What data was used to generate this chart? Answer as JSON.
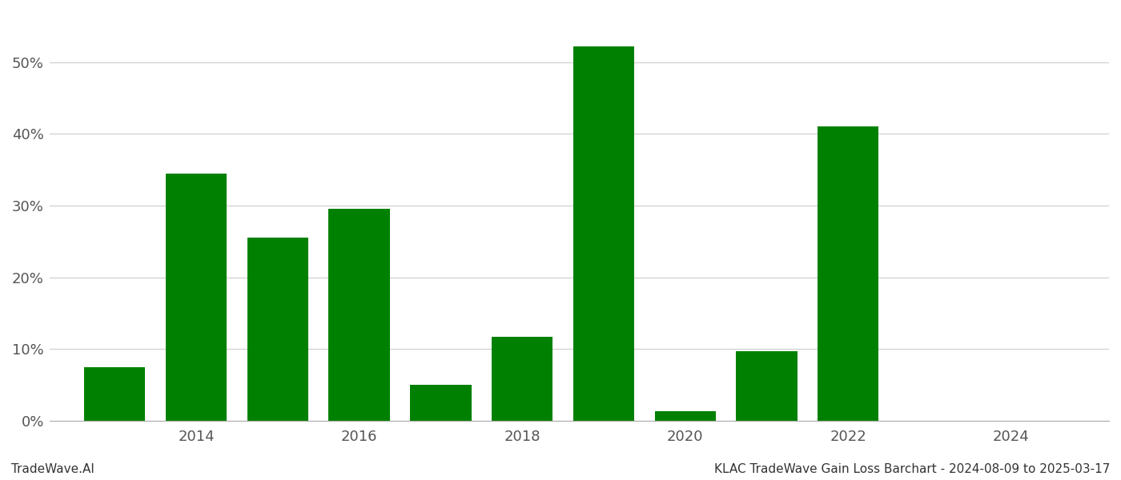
{
  "years": [
    2013,
    2014,
    2015,
    2016,
    2017,
    2018,
    2019,
    2020,
    2021,
    2022,
    2023
  ],
  "values": [
    7.5,
    34.5,
    25.5,
    29.5,
    5.0,
    11.7,
    52.2,
    1.3,
    9.7,
    41.0,
    0.0
  ],
  "bar_color": "#008000",
  "ylim": [
    0,
    57
  ],
  "yticks": [
    0,
    10,
    20,
    30,
    40,
    50
  ],
  "xlim": [
    2012.2,
    2025.2
  ],
  "xticks": [
    2014,
    2016,
    2018,
    2020,
    2022,
    2024
  ],
  "grid_color": "#cccccc",
  "background_color": "#ffffff",
  "footer_left": "TradeWave.AI",
  "footer_right": "KLAC TradeWave Gain Loss Barchart - 2024-08-09 to 2025-03-17",
  "footer_fontsize": 11,
  "bar_width": 0.75
}
